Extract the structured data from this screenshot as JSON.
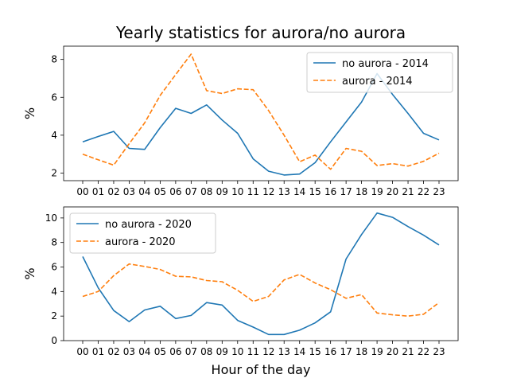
{
  "chart_data": {
    "title": "Yearly statistics for aurora/no aurora",
    "xlabel": "Hour of the day",
    "categories": [
      "00",
      "01",
      "02",
      "03",
      "04",
      "05",
      "06",
      "07",
      "08",
      "09",
      "10",
      "11",
      "12",
      "13",
      "14",
      "15",
      "16",
      "17",
      "18",
      "19",
      "20",
      "21",
      "22",
      "23"
    ],
    "colors": {
      "no_aurora": "#1f77b4",
      "aurora": "#ff7f0e"
    },
    "panels": [
      {
        "type": "line",
        "ylabel": "%",
        "ylim": [
          1.6,
          8.7
        ],
        "yticks": [
          2,
          4,
          6,
          8
        ],
        "legend_position": "top-right",
        "series": [
          {
            "name": "no aurora - 2014",
            "style": "solid",
            "color": "#1f77b4",
            "values": [
              3.65,
              3.93,
              4.2,
              3.3,
              3.25,
              4.4,
              5.42,
              5.15,
              5.6,
              4.8,
              4.1,
              2.75,
              2.1,
              1.9,
              1.95,
              2.55,
              3.65,
              4.7,
              5.75,
              7.25,
              6.15,
              5.15,
              4.1,
              3.75
            ]
          },
          {
            "name": "aurora - 2014",
            "style": "dashed",
            "color": "#ff7f0e",
            "values": [
              3.0,
              2.7,
              2.42,
              3.55,
              4.65,
              6.1,
              7.2,
              8.28,
              6.35,
              6.2,
              6.45,
              6.4,
              5.3,
              4.0,
              2.6,
              2.95,
              2.2,
              3.3,
              3.15,
              2.4,
              2.5,
              2.37,
              2.62,
              3.05
            ]
          }
        ]
      },
      {
        "type": "line",
        "ylabel": "%",
        "ylim": [
          0,
          10.9
        ],
        "yticks": [
          0,
          2,
          4,
          6,
          8,
          10
        ],
        "legend_position": "top-left",
        "series": [
          {
            "name": "no aurora - 2020",
            "style": "solid",
            "color": "#1f77b4",
            "values": [
              6.85,
              4.3,
              2.45,
              1.55,
              2.5,
              2.8,
              1.8,
              2.05,
              3.1,
              2.9,
              1.65,
              1.1,
              0.5,
              0.5,
              0.85,
              1.45,
              2.35,
              6.65,
              8.65,
              10.4,
              10.05,
              9.3,
              8.6,
              7.8
            ]
          },
          {
            "name": "aurora - 2020",
            "style": "dashed",
            "color": "#ff7f0e",
            "values": [
              3.6,
              4.0,
              5.3,
              6.25,
              6.05,
              5.8,
              5.25,
              5.2,
              4.9,
              4.8,
              4.1,
              3.2,
              3.6,
              4.95,
              5.4,
              4.7,
              4.15,
              3.45,
              3.75,
              2.25,
              2.1,
              2.0,
              2.15,
              3.1
            ]
          }
        ]
      }
    ]
  }
}
